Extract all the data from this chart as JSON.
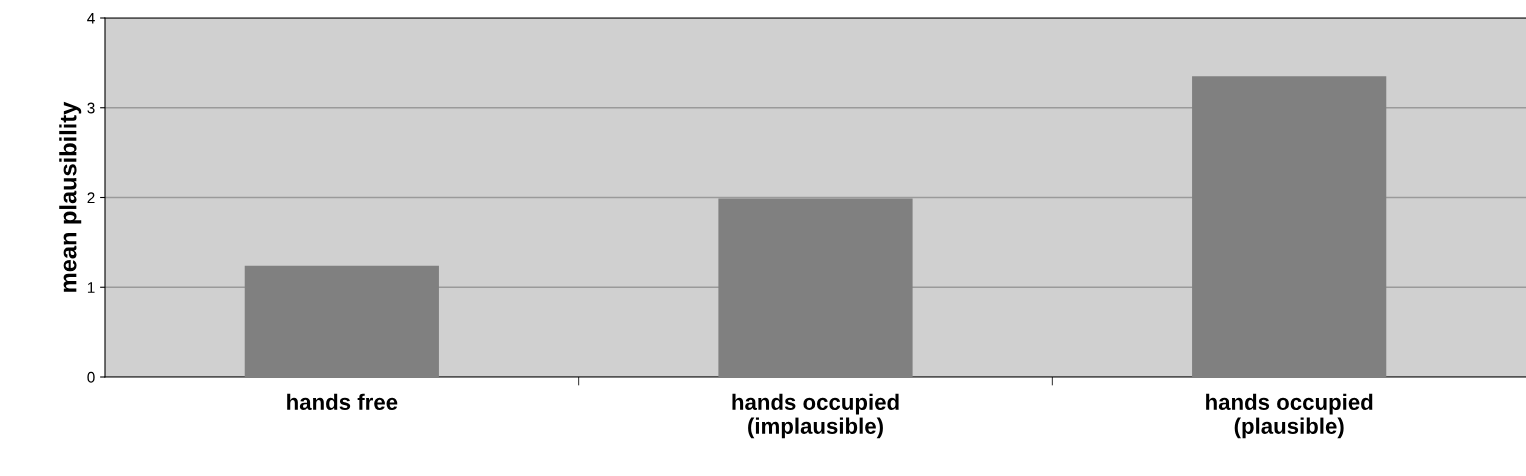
{
  "chart_data": {
    "type": "bar",
    "ylabel": "mean plausibility",
    "categories": [
      "hands free",
      "hands occupied\n(implausible)",
      "hands occupied\n(plausible)"
    ],
    "values": [
      1.24,
      1.99,
      3.35
    ],
    "color": "#808080",
    "ylim": [
      0,
      4
    ],
    "yticks": [
      0,
      1,
      2,
      3,
      4
    ],
    "grid": "y"
  }
}
